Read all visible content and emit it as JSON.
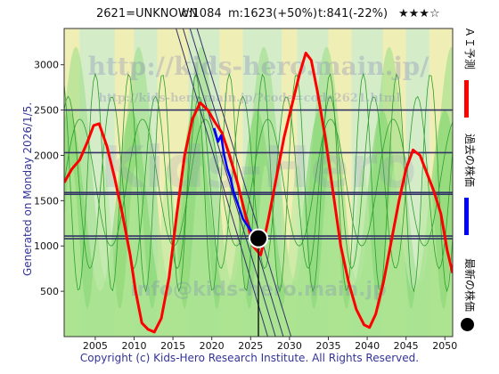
{
  "header": {
    "code": "2621=UNKNOWN",
    "current": "c:1084",
    "max": "m:1623(+50%)",
    "target": "t:841(-22%)",
    "rating": "★★★☆"
  },
  "side_label": "Generated on Monday 2026/1/5.",
  "footer": "Copyright (c) Kids-Hero Research Institute. All Rights Reserved.",
  "watermarks": {
    "url_large": "http://kids-hero.main.jp/",
    "url_small": "http://kids-hero.main.jp/?code=code2621.html",
    "brand": "Kids-Hero",
    "email": "info@kids-hero.main.jp"
  },
  "legend": [
    {
      "label": "ＡＩ予測",
      "color": "#ff0000",
      "icon": "red-line"
    },
    {
      "label": "過去の株価",
      "color": "#0000ff",
      "icon": "blue-line"
    },
    {
      "label": "最新の株価",
      "color": "#000000",
      "icon": "black-dot"
    }
  ],
  "colors": {
    "ai": "#ff0000",
    "history": "#0000ff",
    "latest": "#000000",
    "green_dark": "#2e9e2e",
    "green_fill": "#a8e58a",
    "yellow_fill": "#f2f0a0",
    "background": "#e8e6f4",
    "channel": "#333366",
    "hline": "#333366"
  },
  "chart_data": {
    "type": "line",
    "title": "",
    "xlabel": "",
    "ylabel": "",
    "xlim": [
      2001,
      2051
    ],
    "ylim": [
      0,
      3400
    ],
    "x_ticks": [
      2005,
      2010,
      2015,
      2020,
      2025,
      2030,
      2035,
      2040,
      2045,
      2050
    ],
    "y_ticks": [
      500,
      1000,
      1500,
      2000,
      2500,
      3000
    ],
    "hlines": [
      2500,
      2030,
      1590,
      1570,
      1110,
      1080
    ],
    "latest": {
      "x": 2026.0,
      "y": 1084
    },
    "series": [
      {
        "name": "ＡＩ予測",
        "x": [
          2001,
          2002,
          2003,
          2004,
          2004.8,
          2005.5,
          2006.5,
          2007.5,
          2008.5,
          2009.5,
          2010.2,
          2011,
          2011.8,
          2012.6,
          2013.5,
          2014.5,
          2015.5,
          2016.5,
          2017.5,
          2018.5,
          2019.5,
          2020.3,
          2021.3,
          2022.3,
          2023.3,
          2024.3,
          2025.3,
          2026.3,
          2027.3,
          2028.3,
          2029.3,
          2030.3,
          2031.3,
          2032.1,
          2032.8,
          2033.6,
          2034.6,
          2035.6,
          2036.6,
          2037.6,
          2038.6,
          2039.6,
          2040.3,
          2041.1,
          2042.1,
          2043.1,
          2044.1,
          2045,
          2045.9,
          2046.8,
          2047.7,
          2048.6,
          2049.5,
          2050.3,
          2051
        ],
        "values": [
          1700,
          1850,
          1950,
          2150,
          2330,
          2350,
          2100,
          1750,
          1350,
          900,
          500,
          150,
          80,
          50,
          200,
          650,
          1350,
          2000,
          2400,
          2580,
          2500,
          2380,
          2250,
          2000,
          1700,
          1350,
          1000,
          900,
          1300,
          1750,
          2200,
          2550,
          2900,
          3130,
          3050,
          2700,
          2200,
          1600,
          1000,
          600,
          300,
          130,
          100,
          250,
          600,
          1050,
          1500,
          1850,
          2060,
          2000,
          1800,
          1600,
          1350,
          950,
          700
        ]
      },
      {
        "name": "過去の株価",
        "x": [
          2020.3,
          2020.8,
          2021.2,
          2021.6,
          2022,
          2022.4,
          2022.8,
          2023.2,
          2023.6,
          2024,
          2024.4,
          2024.8,
          2025.2,
          2025.6,
          2026
        ],
        "values": [
          2300,
          2150,
          2220,
          2000,
          1850,
          1750,
          1600,
          1500,
          1400,
          1300,
          1250,
          1200,
          1150,
          1110,
          1084
        ]
      }
    ]
  }
}
